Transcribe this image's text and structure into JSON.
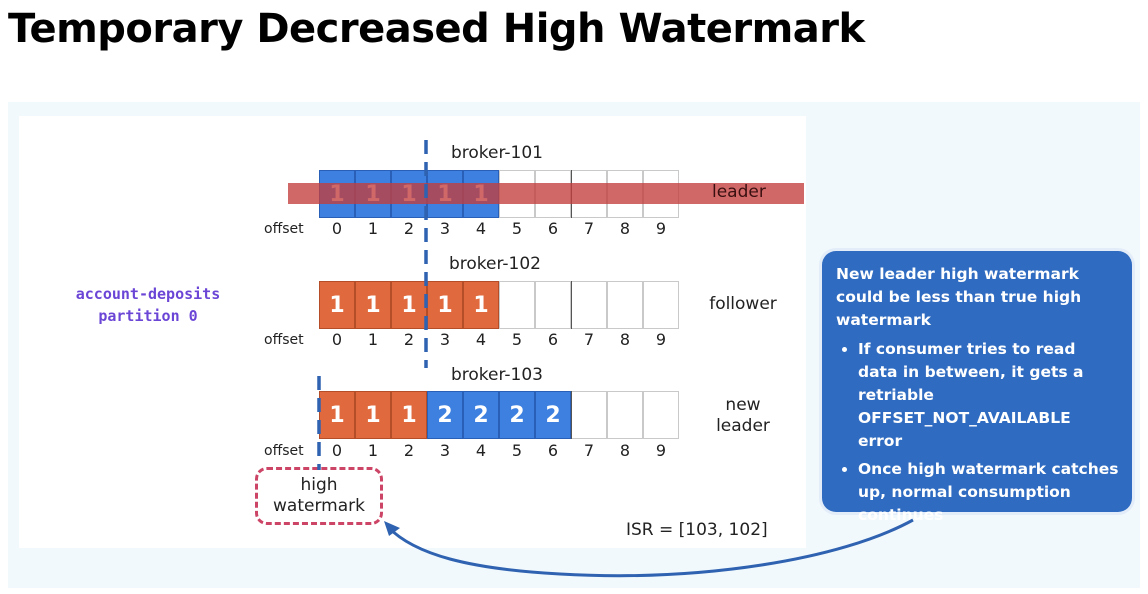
{
  "title": "Temporary Decreased High Watermark",
  "topic": {
    "line1": "account-deposits",
    "line2": "partition 0"
  },
  "offset_label": "offset",
  "offsets": [
    "0",
    "1",
    "2",
    "3",
    "4",
    "5",
    "6",
    "7",
    "8",
    "9"
  ],
  "brokers": [
    {
      "name": "broker-101",
      "role": [
        "leader"
      ],
      "cells": [
        {
          "value": "1",
          "color": "blue"
        },
        {
          "value": "1",
          "color": "blue"
        },
        {
          "value": "1",
          "color": "blue"
        },
        {
          "value": "1",
          "color": "blue"
        },
        {
          "value": "1",
          "color": "blue"
        },
        {
          "value": "",
          "color": "empty"
        },
        {
          "value": "",
          "color": "empty"
        },
        {
          "value": "",
          "color": "empty"
        },
        {
          "value": "",
          "color": "empty"
        },
        {
          "value": "",
          "color": "empty"
        }
      ]
    },
    {
      "name": "broker-102",
      "role": [
        "follower"
      ],
      "cells": [
        {
          "value": "1",
          "color": "orange"
        },
        {
          "value": "1",
          "color": "orange"
        },
        {
          "value": "1",
          "color": "orange"
        },
        {
          "value": "1",
          "color": "orange"
        },
        {
          "value": "1",
          "color": "orange"
        },
        {
          "value": "",
          "color": "empty"
        },
        {
          "value": "",
          "color": "empty"
        },
        {
          "value": "",
          "color": "empty"
        },
        {
          "value": "",
          "color": "empty"
        },
        {
          "value": "",
          "color": "empty"
        }
      ]
    },
    {
      "name": "broker-103",
      "role": [
        "new",
        "leader"
      ],
      "cells": [
        {
          "value": "1",
          "color": "orange"
        },
        {
          "value": "1",
          "color": "orange"
        },
        {
          "value": "1",
          "color": "orange"
        },
        {
          "value": "2",
          "color": "blue"
        },
        {
          "value": "2",
          "color": "blue"
        },
        {
          "value": "2",
          "color": "blue"
        },
        {
          "value": "2",
          "color": "blue"
        },
        {
          "value": "",
          "color": "empty"
        },
        {
          "value": "",
          "color": "empty"
        },
        {
          "value": "",
          "color": "empty"
        }
      ]
    }
  ],
  "high_watermark": {
    "line1": "high",
    "line2": "watermark"
  },
  "isr": "ISR = [103, 102]",
  "callout": {
    "heading": "New leader high watermark could be less than true high watermark",
    "bullets": [
      "If consumer tries to read data in between, it gets a retriable OFFSET_NOT_AVAILABLE error",
      "Once high watermark catches up, normal consumption continues"
    ]
  },
  "colors": {
    "orange": "#e06a3e",
    "blue": "#3d80e0",
    "leader_band": "#c43e3e",
    "watermark_line": "#2f62b0",
    "hw_box_border": "#cc4466",
    "callout_bg": "#2f6bc0",
    "arrow": "#2f62b0",
    "topic_text": "#6b46d6"
  }
}
